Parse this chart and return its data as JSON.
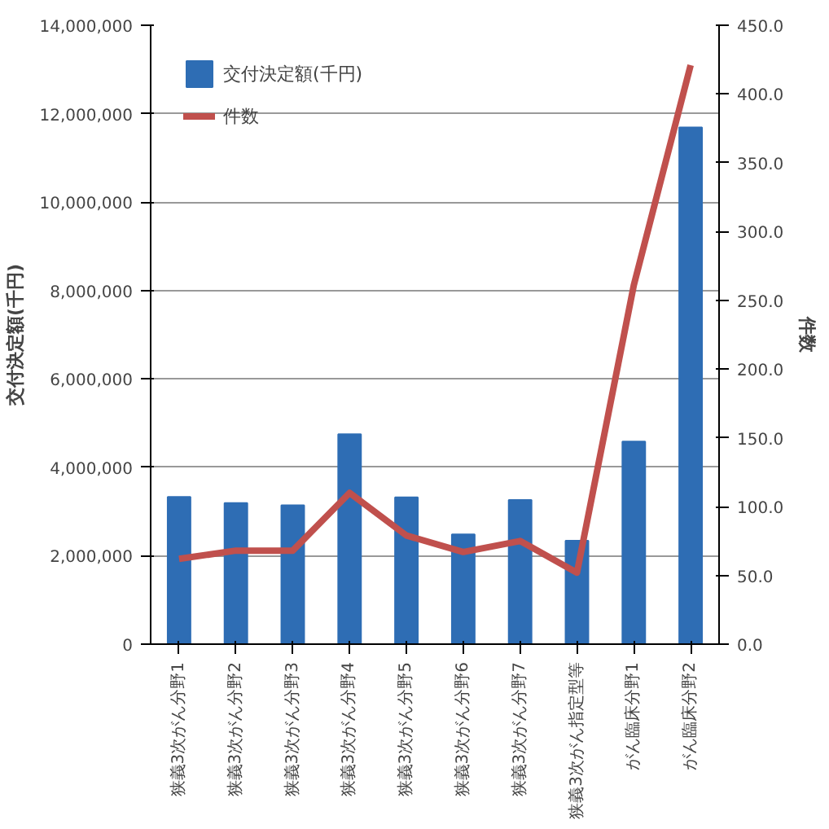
{
  "chart_data": {
    "type": "bar",
    "ylabel": "交付決定額(千円)",
    "y2label": "件数",
    "categories": [
      "狭義3次がん分野1",
      "狭義3次がん分野2",
      "狭義3次がん分野3",
      "狭義3次がん分野4",
      "狭義3次がん分野5",
      "狭義3次がん分野6",
      "狭義3次がん分野7",
      "狭義3次がん指定型等",
      "がん臨床分野1",
      "がん臨床分野2"
    ],
    "series": [
      {
        "name": "交付決定額(千円)",
        "color": "#2e6db4",
        "values": [
          3330000,
          3190000,
          3140000,
          4750000,
          3320000,
          2480000,
          3260000,
          2340000,
          4580000,
          11690000
        ]
      },
      {
        "name": "件数",
        "type": "line",
        "axis": "y2",
        "color": "#c0504d",
        "values": [
          62,
          68,
          68,
          110,
          79,
          67,
          75,
          52,
          261,
          421
        ]
      }
    ],
    "ylim": [
      0,
      14000000
    ],
    "yticks": [
      {
        "value": 0,
        "label": "0"
      },
      {
        "value": 2000000,
        "label": "2,000,000"
      },
      {
        "value": 4000000,
        "label": "4,000,000"
      },
      {
        "value": 6000000,
        "label": "6,000,000"
      },
      {
        "value": 8000000,
        "label": "8,000,000"
      },
      {
        "value": 10000000,
        "label": "10,000,000"
      },
      {
        "value": 12000000,
        "label": "12,000,000"
      },
      {
        "value": 14000000,
        "label": "14,000,000"
      }
    ],
    "y2lim": [
      0,
      450
    ],
    "y2ticks": [
      {
        "value": 0,
        "label": "0.0"
      },
      {
        "value": 50,
        "label": "50.0"
      },
      {
        "value": 100,
        "label": "100.0"
      },
      {
        "value": 150,
        "label": "150.0"
      },
      {
        "value": 200,
        "label": "200.0"
      },
      {
        "value": 250,
        "label": "250.0"
      },
      {
        "value": 300,
        "label": "300.0"
      },
      {
        "value": 350,
        "label": "350.0"
      },
      {
        "value": 400,
        "label": "400.0"
      },
      {
        "value": 450,
        "label": "450.0"
      }
    ],
    "grid": "y",
    "legend": "top left",
    "marker": "none",
    "line_style": "solid"
  }
}
